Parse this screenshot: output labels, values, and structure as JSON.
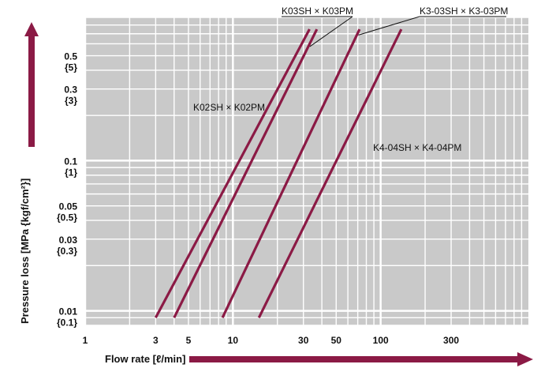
{
  "chart_data": {
    "type": "line",
    "xlabel": "Flow rate [ℓ/min]",
    "ylabel": "Pressure loss [MPa {kgf/cm²}]",
    "x_scale": "log",
    "y_scale": "log",
    "xlim": [
      1,
      1000
    ],
    "ylim": [
      0.008,
      0.9
    ],
    "grid": true,
    "x_ticks": [
      {
        "value": 1,
        "label": "1"
      },
      {
        "value": 3,
        "label": "3"
      },
      {
        "value": 5,
        "label": "5"
      },
      {
        "value": 10,
        "label": "10"
      },
      {
        "value": 30,
        "label": "30"
      },
      {
        "value": 50,
        "label": "50"
      },
      {
        "value": 100,
        "label": "100"
      },
      {
        "value": 300,
        "label": "300"
      }
    ],
    "y_ticks": [
      {
        "value": 0.01,
        "label": "0.01",
        "sublabel": "{0.1}"
      },
      {
        "value": 0.03,
        "label": "0.03",
        "sublabel": "{0.3}"
      },
      {
        "value": 0.05,
        "label": "0.05",
        "sublabel": "{0.5}"
      },
      {
        "value": 0.1,
        "label": "0.1",
        "sublabel": "{1}"
      },
      {
        "value": 0.3,
        "label": "0.3",
        "sublabel": "{3}"
      },
      {
        "value": 0.5,
        "label": "0.5",
        "sublabel": "{5}"
      }
    ],
    "series": [
      {
        "name": "K02SH × K02PM",
        "x": [
          3,
          33
        ],
        "y": [
          0.009,
          0.75
        ]
      },
      {
        "name": "K03SH × K03PM",
        "x": [
          4,
          37
        ],
        "y": [
          0.009,
          0.75
        ]
      },
      {
        "name": "K3-03SH × K3-03PM",
        "x": [
          8.5,
          72
        ],
        "y": [
          0.009,
          0.75
        ]
      },
      {
        "name": "K4-04SH × K4-04PM",
        "x": [
          15,
          138
        ],
        "y": [
          0.009,
          0.75
        ]
      }
    ],
    "colors": {
      "line": "#8b1a45",
      "plot_bg": "#c9c9c9",
      "grid": "#ffffff"
    }
  }
}
